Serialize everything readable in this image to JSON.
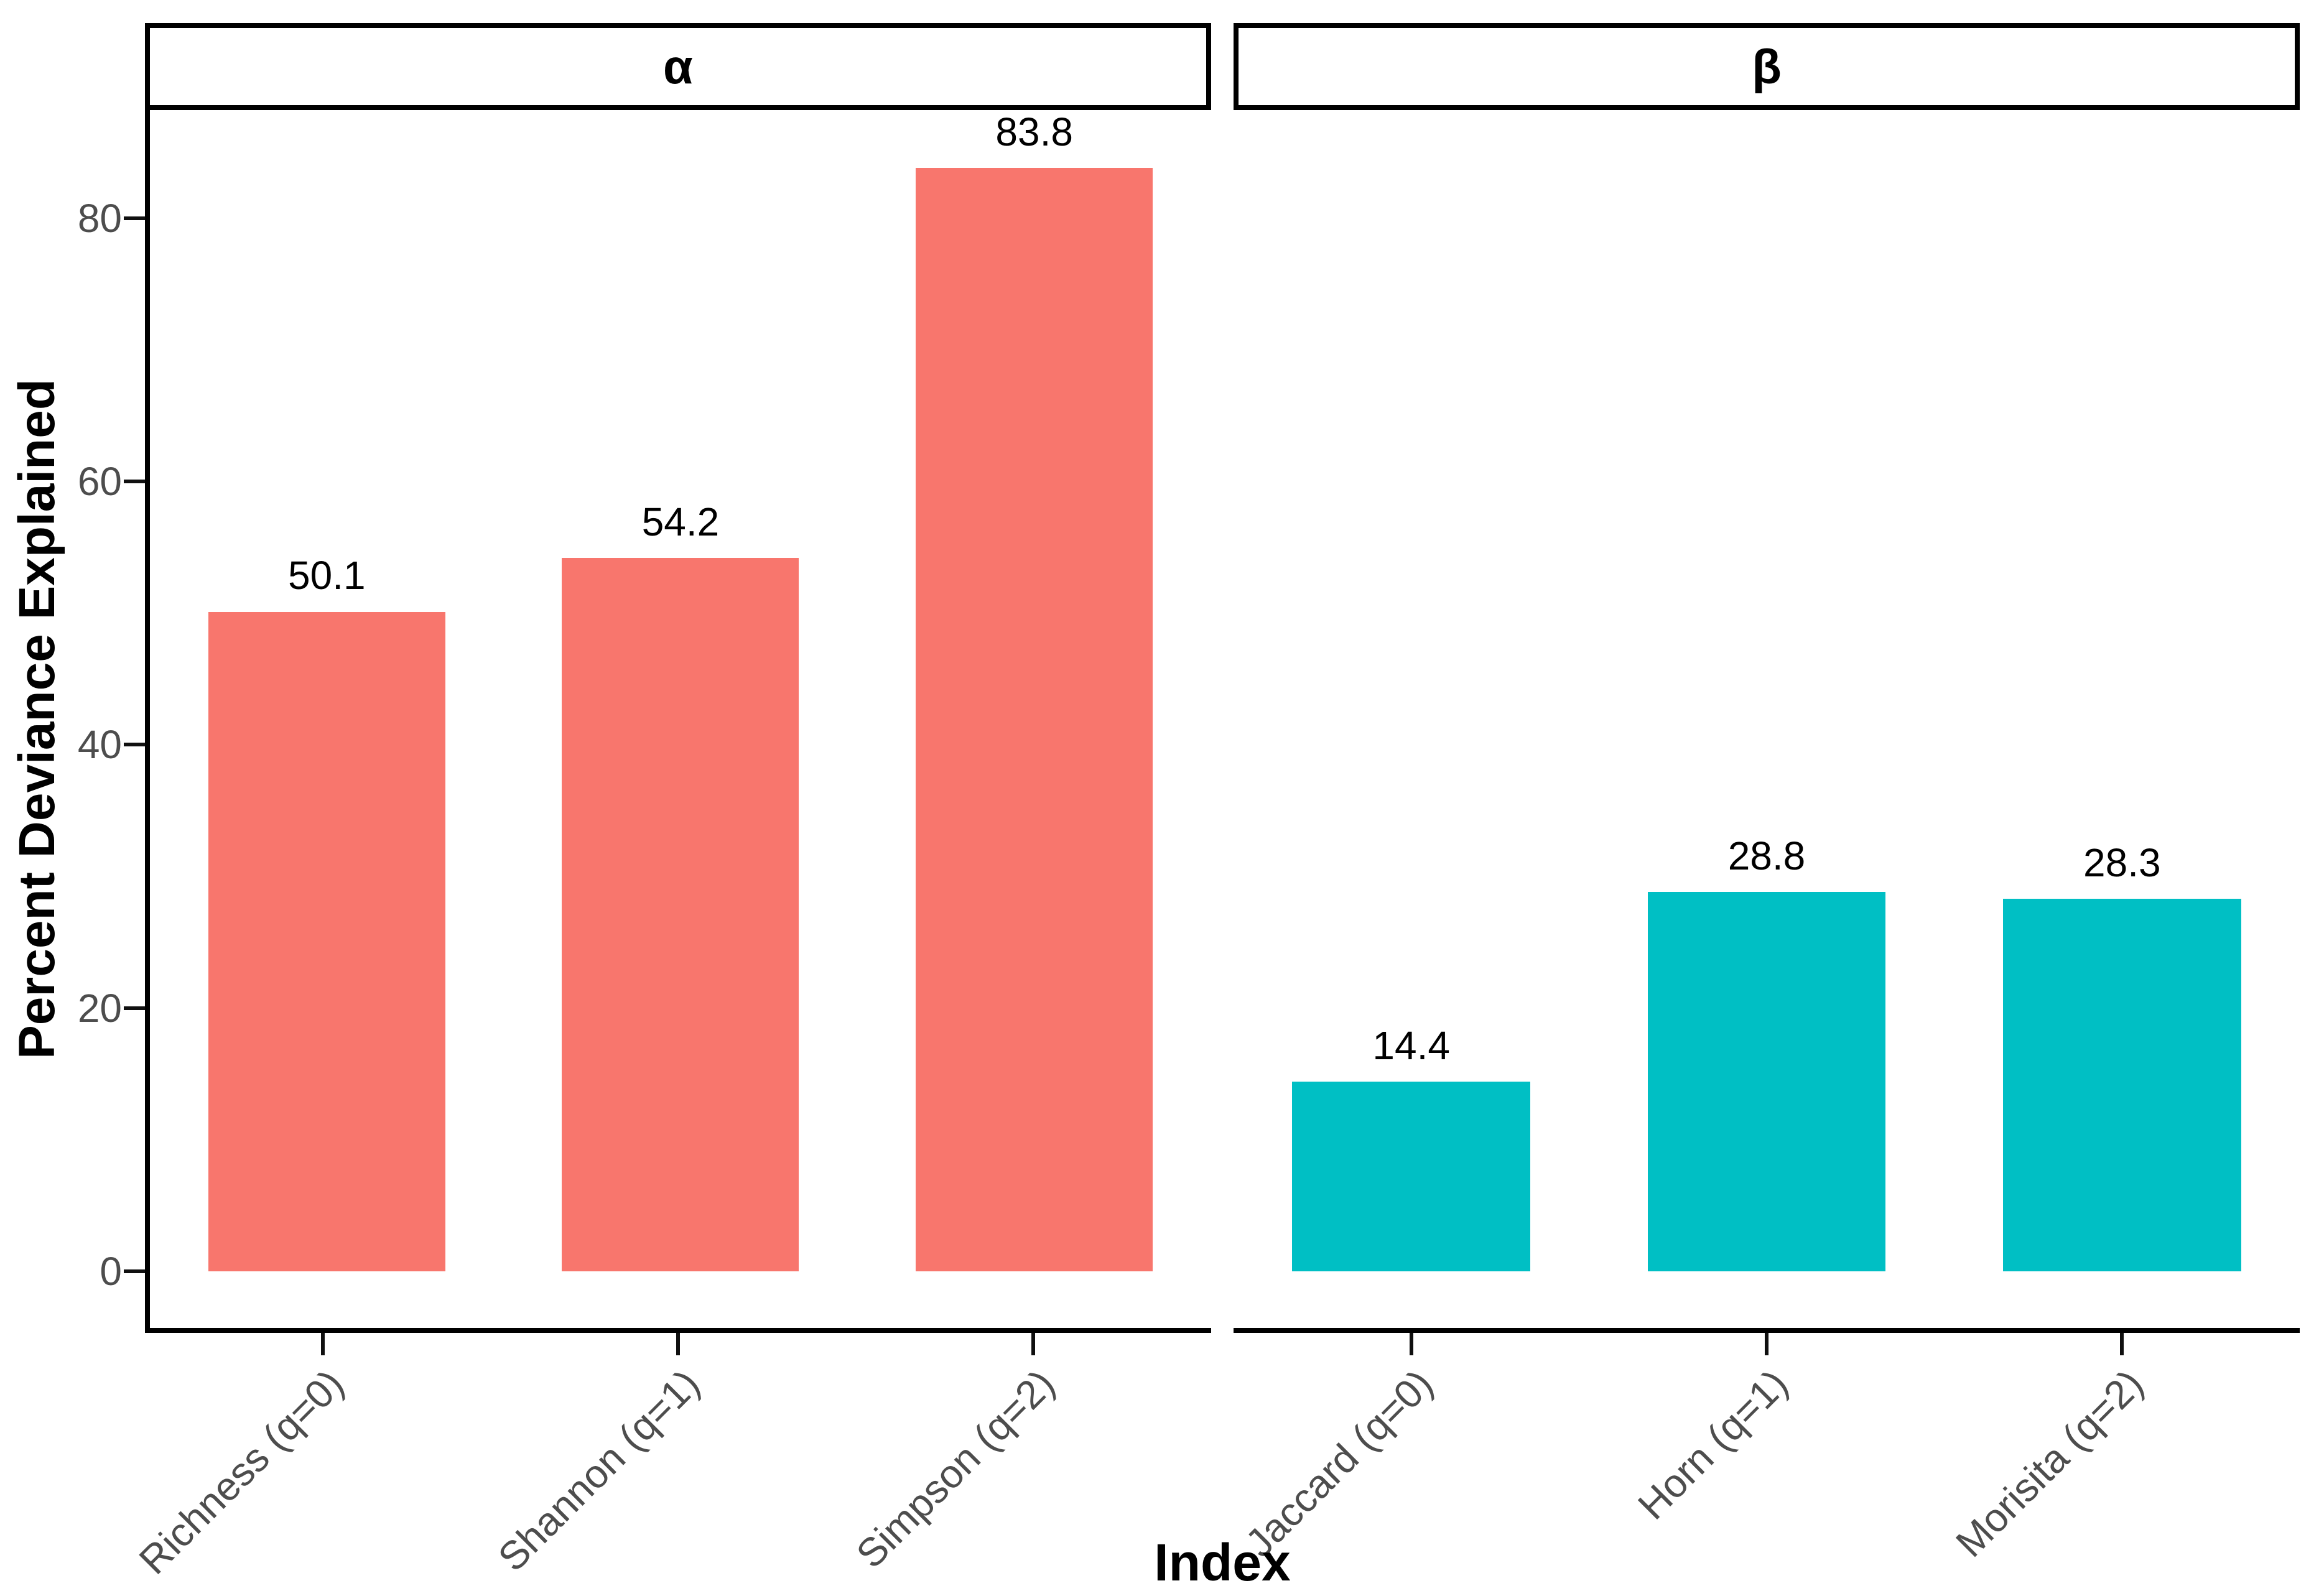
{
  "chart_data": {
    "type": "bar",
    "title": "",
    "xlabel": "Index",
    "ylabel": "Percent Deviance Explained",
    "yticks": [
      0,
      20,
      40,
      60,
      80
    ],
    "ylim": [
      0,
      88
    ],
    "grid": false,
    "legend": "none",
    "axis_text_color": "#4D4D4D",
    "text_color": "#000000",
    "facets": [
      {
        "label": "α",
        "fill": "#F8766D",
        "categories": [
          "Richness (q=0)",
          "Shannon (q=1)",
          "Simpson (q=2)"
        ],
        "values": [
          50.1,
          54.2,
          83.8
        ],
        "bar_labels": [
          "50.1",
          "54.2",
          "83.8"
        ]
      },
      {
        "label": "β",
        "fill": "#00BFC4",
        "categories": [
          "Jaccard (q=0)",
          "Horn (q=1)",
          "Morisita (q=2)"
        ],
        "values": [
          14.4,
          28.8,
          28.3
        ],
        "bar_labels": [
          "14.4",
          "28.8",
          "28.3"
        ]
      }
    ]
  }
}
